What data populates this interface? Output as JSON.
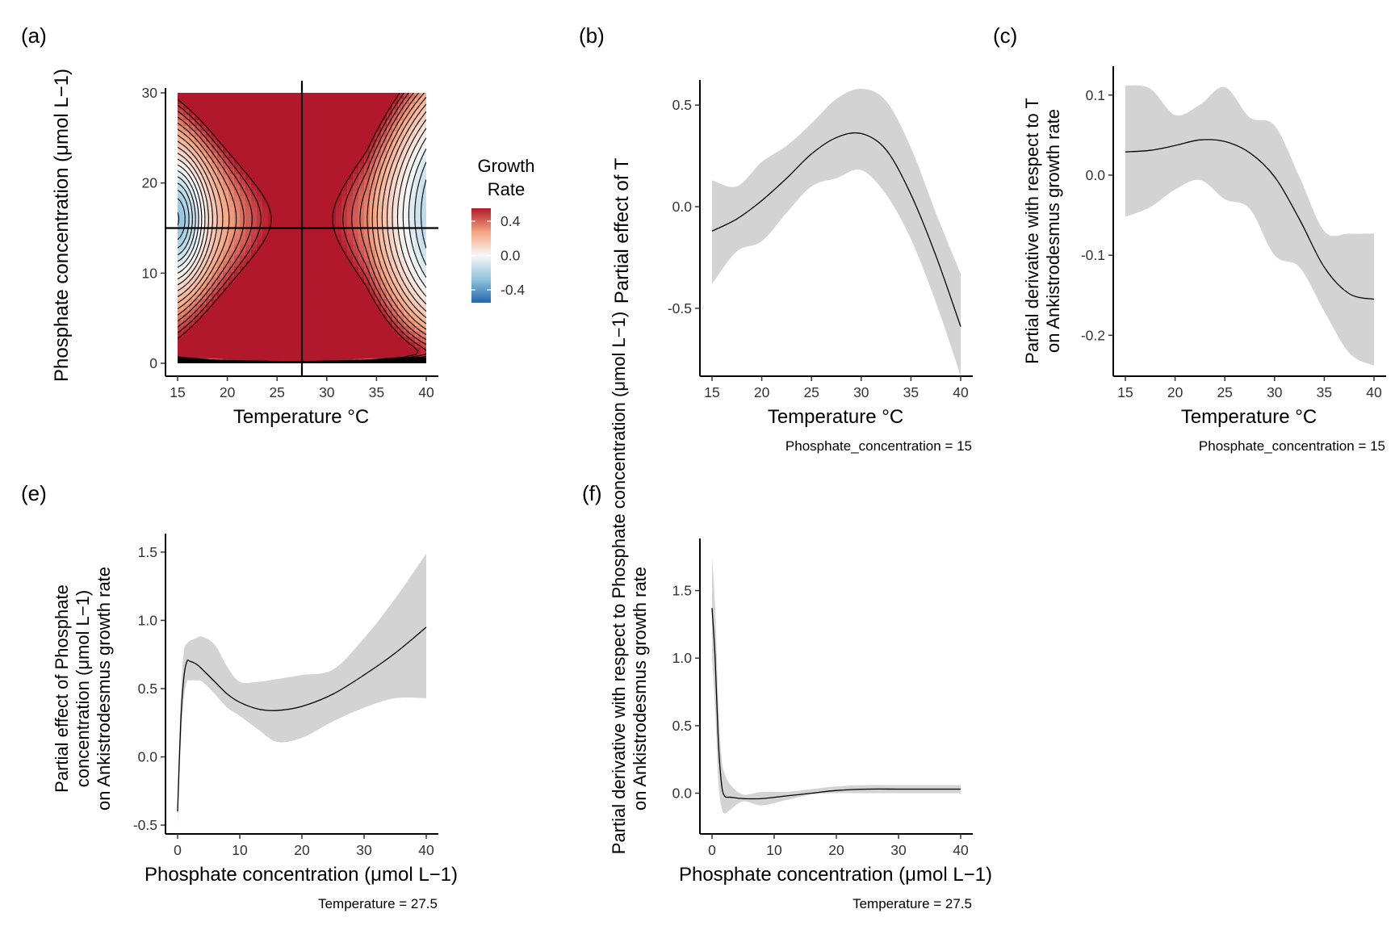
{
  "panels": {
    "a": {
      "tag": "(a)",
      "xlabel": "Temperature °C",
      "ylabel": "Phosphate concentration (μmol L−1)",
      "legend_title_1": "Growth",
      "legend_title_2": "Rate"
    },
    "b": {
      "tag": "(b)",
      "xlabel": "Temperature °C",
      "ylabel": "Partial effect of T",
      "caption": "Phosphate_concentration = 15"
    },
    "c": {
      "tag": "(c)",
      "xlabel": "Temperature °C",
      "ylabel_1": "Partial derivative with respect to T",
      "ylabel_2": "on Ankistrodesmus growth rate",
      "caption": "Phosphate_concentration = 15"
    },
    "e": {
      "tag": "(e)",
      "xlabel": "Phosphate concentration (μmol L−1)",
      "ylabel_1": "Partial effect of Phosphate",
      "ylabel_2": "concentration (μmol L−1)",
      "ylabel_3": "on Ankistrodesmus growth rate",
      "caption": "Temperature = 27.5"
    },
    "f": {
      "tag": "(f)",
      "xlabel": "Phosphate concentration (μmol L−1)",
      "ylabel_1": "Partial derivative with respect to Phosphate concentration (μmol L−1)",
      "ylabel_2": "on Ankistrodesmus growth rate",
      "caption": "Temperature = 27.5"
    }
  },
  "colors": {
    "ribbon": "#d3d3d3",
    "line": "#000000",
    "high": "#b2182b",
    "mid": "#f7f7f7",
    "low": "#2166ac"
  },
  "chart_data": [
    {
      "id": "a",
      "type": "heatmap",
      "x_name": "Temperature",
      "y_name": "Phosphate concentration",
      "xlim": [
        15,
        40
      ],
      "ylim": [
        0,
        30
      ],
      "xticks": [
        15,
        20,
        25,
        30,
        35,
        40
      ],
      "yticks": [
        0,
        10,
        20,
        30
      ],
      "fill_range": [
        -0.55,
        0.55
      ],
      "legend_breaks": [
        0.4,
        0.0,
        -0.4
      ],
      "legend_labels": [
        "0.4",
        "0.0",
        "-0.4"
      ],
      "reference_lines": {
        "vertical_x": 27.5,
        "horizontal_y": 15
      },
      "contours": true
    },
    {
      "id": "b",
      "type": "line",
      "xlim": [
        15,
        40
      ],
      "ylim": [
        -0.85,
        0.6
      ],
      "xticks": [
        15,
        20,
        25,
        30,
        35,
        40
      ],
      "yticks": [
        -0.5,
        0.0,
        0.5
      ],
      "ytick_labels": [
        "-0.5",
        "0.0",
        "0.5"
      ],
      "x": [
        15,
        17.5,
        20,
        22.5,
        25,
        27.5,
        30,
        32.5,
        35,
        37.5,
        40
      ],
      "y": [
        -0.12,
        -0.06,
        0.03,
        0.14,
        0.26,
        0.34,
        0.36,
        0.28,
        0.06,
        -0.24,
        -0.59
      ],
      "lower": [
        -0.38,
        -0.22,
        -0.17,
        -0.03,
        0.1,
        0.14,
        0.18,
        0.06,
        -0.16,
        -0.47,
        -0.83
      ],
      "upper": [
        0.13,
        0.1,
        0.22,
        0.3,
        0.41,
        0.53,
        0.58,
        0.52,
        0.29,
        -0.03,
        -0.33
      ]
    },
    {
      "id": "c",
      "type": "line",
      "xlim": [
        15,
        40
      ],
      "ylim": [
        -0.24,
        0.13
      ],
      "xticks": [
        15,
        20,
        25,
        30,
        35,
        40
      ],
      "yticks": [
        -0.2,
        -0.1,
        0.0,
        0.1
      ],
      "ytick_labels": [
        "-0.2",
        "-0.1",
        "0.0",
        "0.1"
      ],
      "x": [
        15,
        17.5,
        20,
        22.5,
        25,
        27.5,
        30,
        32.5,
        35,
        37.5,
        40
      ],
      "y": [
        0.029,
        0.031,
        0.037,
        0.044,
        0.042,
        0.028,
        -0.002,
        -0.055,
        -0.115,
        -0.148,
        -0.155
      ],
      "lower": [
        -0.052,
        -0.04,
        -0.018,
        -0.006,
        -0.03,
        -0.042,
        -0.1,
        -0.115,
        -0.17,
        -0.222,
        -0.238
      ],
      "upper": [
        0.112,
        0.108,
        0.075,
        0.088,
        0.11,
        0.072,
        0.062,
        -0.002,
        -0.07,
        -0.073,
        -0.073
      ]
    },
    {
      "id": "e",
      "type": "line",
      "xlim": [
        0,
        40
      ],
      "ylim": [
        -0.6,
        1.6
      ],
      "xticks": [
        0,
        10,
        20,
        30,
        40
      ],
      "yticks": [
        -0.5,
        0.0,
        0.5,
        1.0,
        1.5
      ],
      "ytick_labels": [
        "-0.5",
        "0.0",
        "0.5",
        "1.0",
        "1.5"
      ],
      "x": [
        0,
        0.5,
        1,
        1.5,
        2,
        3,
        4,
        6,
        8,
        10,
        13,
        16,
        20,
        25,
        30,
        35,
        40
      ],
      "y": [
        -0.4,
        0.25,
        0.58,
        0.7,
        0.7,
        0.68,
        0.64,
        0.55,
        0.46,
        0.4,
        0.35,
        0.34,
        0.37,
        0.46,
        0.6,
        0.76,
        0.95
      ],
      "lower": [
        -0.5,
        0.07,
        0.42,
        0.55,
        0.56,
        0.56,
        0.55,
        0.46,
        0.36,
        0.3,
        0.2,
        0.11,
        0.14,
        0.26,
        0.36,
        0.43,
        0.43
      ],
      "upper": [
        -0.3,
        0.43,
        0.77,
        0.83,
        0.85,
        0.87,
        0.88,
        0.82,
        0.66,
        0.55,
        0.55,
        0.57,
        0.6,
        0.64,
        0.87,
        1.16,
        1.49
      ]
    },
    {
      "id": "f",
      "type": "line",
      "xlim": [
        0,
        40
      ],
      "ylim": [
        -0.2,
        1.85
      ],
      "xticks": [
        0,
        10,
        20,
        30,
        40
      ],
      "yticks": [
        0.0,
        0.5,
        1.0,
        1.5
      ],
      "ytick_labels": [
        "0.0",
        "0.5",
        "1.0",
        "1.5"
      ],
      "x": [
        0,
        0.5,
        1,
        1.5,
        2,
        3,
        5,
        8,
        12,
        16,
        20,
        25,
        30,
        35,
        40
      ],
      "y": [
        1.37,
        1.0,
        0.4,
        0.08,
        -0.02,
        -0.03,
        -0.04,
        -0.04,
        -0.02,
        0.0,
        0.02,
        0.03,
        0.03,
        0.03,
        0.03
      ],
      "lower": [
        1.0,
        0.62,
        0.1,
        -0.1,
        -0.15,
        -0.12,
        -0.06,
        -0.09,
        -0.05,
        -0.01,
        0.0,
        0.0,
        0.0,
        0.0,
        0.0
      ],
      "upper": [
        1.75,
        1.38,
        0.7,
        0.28,
        0.15,
        0.06,
        -0.01,
        0.01,
        0.01,
        0.03,
        0.05,
        0.06,
        0.06,
        0.06,
        0.06
      ]
    }
  ]
}
